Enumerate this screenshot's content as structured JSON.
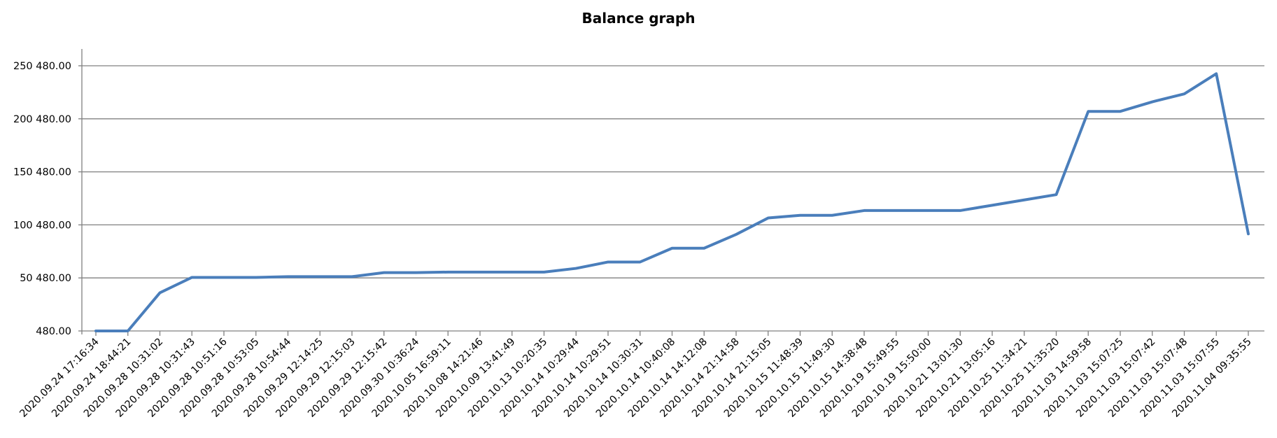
{
  "chart_data": {
    "type": "line",
    "title": "Balance graph",
    "xlabel": "",
    "ylabel": "",
    "ylim": [
      480,
      250480
    ],
    "y_ticks": [
      480,
      50480,
      100480,
      150480,
      200480,
      250480
    ],
    "y_tick_labels": [
      "480.00",
      "50 480.00",
      "100 480.00",
      "150 480.00",
      "200 480.00",
      "250 480.00"
    ],
    "grid": "horizontal",
    "line_color": "#4a7ebb",
    "categories": [
      "2020.09.24 17:16:34",
      "2020.09.24 18:44:21",
      "2020.09.28 10:31:02",
      "2020.09.28 10:31:43",
      "2020.09.28 10:51:16",
      "2020.09.28 10:53:05",
      "2020.09.28 10:54:44",
      "2020.09.29 12:14:25",
      "2020.09.29 12:15:03",
      "2020.09.29 12:15:42",
      "2020.09.30 10:36:24",
      "2020.10.05 16:59:11",
      "2020.10.08 14:21:46",
      "2020.10.09 13:41:49",
      "2020.10.13 10:20:35",
      "2020.10.14 10:29:44",
      "2020.10.14 10:29:51",
      "2020.10.14 10:30:31",
      "2020.10.14 10:40:08",
      "2020.10.14 14:12:08",
      "2020.10.14 21:14:58",
      "2020.10.14 21:15:05",
      "2020.10.15 11:48:39",
      "2020.10.15 11:49:30",
      "2020.10.15 14:38:48",
      "2020.10.19 15:49:55",
      "2020.10.19 15:50:00",
      "2020.10.21 13:01:30",
      "2020.10.21 13:05:16",
      "2020.10.25 11:34:21",
      "2020.10.25 11:35:20",
      "2020.11.03 14:59:58",
      "2020.11.03 15:07:25",
      "2020.11.03 15:07:42",
      "2020.11.03 15:07:48",
      "2020.11.03 15:07:55",
      "2020.11.04 09:35:55"
    ],
    "series": [
      {
        "values": [
          480,
          480,
          36480,
          50980,
          50980,
          50980,
          51680,
          51680,
          51680,
          55480,
          55480,
          55980,
          55980,
          55980,
          55980,
          59480,
          65480,
          65480,
          78480,
          78480,
          91480,
          106980,
          109480,
          109480,
          113980,
          113980,
          113980,
          113980,
          118980,
          123980,
          128980,
          207480,
          207480,
          216480,
          223980,
          242980,
          91980
        ]
      }
    ]
  }
}
